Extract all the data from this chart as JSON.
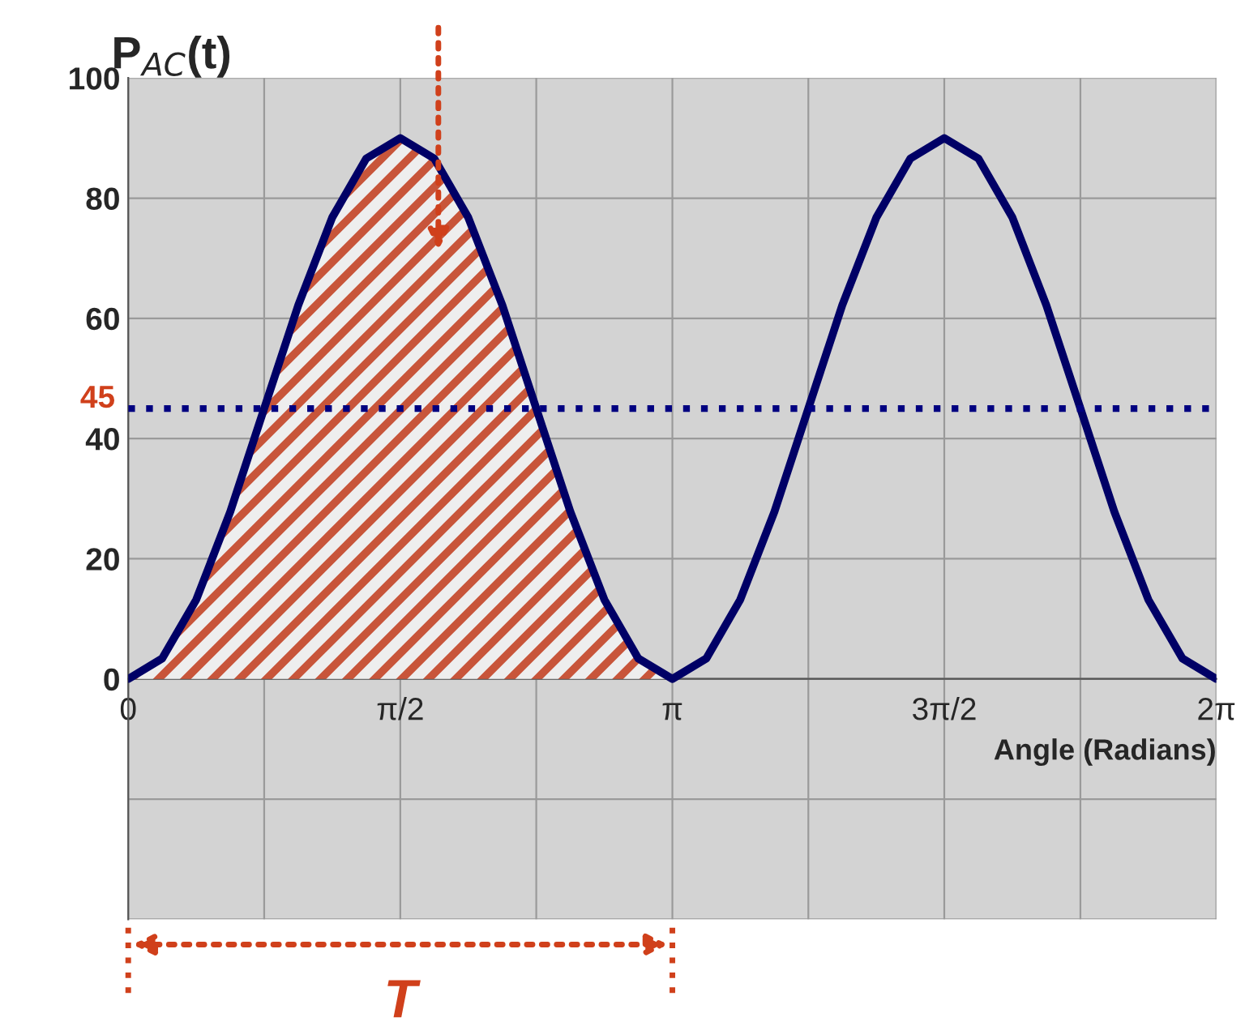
{
  "chart_data": {
    "type": "line",
    "ylabel": "P$_{AC}$(t)",
    "xlabel": "Angle (Radians)",
    "series": [
      {
        "type": "area",
        "color": "#c8553a",
        "x": [
          0,
          0.196,
          0.393,
          0.589,
          0.785,
          0.982,
          1.178,
          1.374,
          1.571,
          1.767,
          1.963,
          2.16,
          2.356,
          2.553,
          2.749,
          2.945,
          3.142
        ],
        "values": [
          0,
          3.4,
          13.2,
          27.8,
          45,
          62.2,
          76.8,
          86.6,
          90,
          86.6,
          76.8,
          62.2,
          45,
          27.8,
          13.2,
          3.4,
          0
        ]
      },
      {
        "type": "line",
        "color": "#000066",
        "x": [
          0,
          0.196,
          0.393,
          0.589,
          0.785,
          0.982,
          1.178,
          1.374,
          1.571,
          1.767,
          1.963,
          2.16,
          2.356,
          2.553,
          2.749,
          2.945,
          3.142,
          3.338,
          3.534,
          3.731,
          3.927,
          4.123,
          4.32,
          4.516,
          4.712,
          4.909,
          5.105,
          5.301,
          5.498,
          5.694,
          5.89,
          6.087,
          6.283
        ],
        "values": [
          0,
          3.4,
          13.2,
          27.8,
          45,
          62.2,
          76.8,
          86.6,
          90,
          86.6,
          76.8,
          62.2,
          45,
          27.8,
          13.2,
          3.4,
          0,
          3.4,
          13.2,
          27.8,
          45,
          62.2,
          76.8,
          86.6,
          90,
          86.6,
          76.8,
          62.2,
          45,
          27.8,
          13.2,
          3.4,
          0
        ]
      }
    ],
    "xlim": [
      0,
      6.283
    ],
    "xticks": [
      {
        "value": 0,
        "label": "0"
      },
      {
        "value": 0.785,
        "label": null
      },
      {
        "value": 1.571,
        "label": "π/2"
      },
      {
        "value": 2.356,
        "label": null
      },
      {
        "value": 3.142,
        "label": "π"
      },
      {
        "value": 3.927,
        "label": null
      },
      {
        "value": 4.712,
        "label": "3π/2"
      },
      {
        "value": 5.498,
        "label": null
      },
      {
        "value": 6.283,
        "label": "2π"
      }
    ],
    "ylim": [
      -40,
      100
    ],
    "yticks": [
      {
        "value": -40,
        "label": null
      },
      {
        "value": -20,
        "label": null
      },
      0,
      20,
      40,
      60,
      80,
      100
    ],
    "ref_lines": [
      {
        "axis": "y",
        "value": 45,
        "label": "45",
        "color": "#000080",
        "line_style": "dotted"
      }
    ],
    "annotations": [
      "T"
    ],
    "grid": true,
    "legend": false,
    "marker": "none",
    "line_style": "solid"
  }
}
